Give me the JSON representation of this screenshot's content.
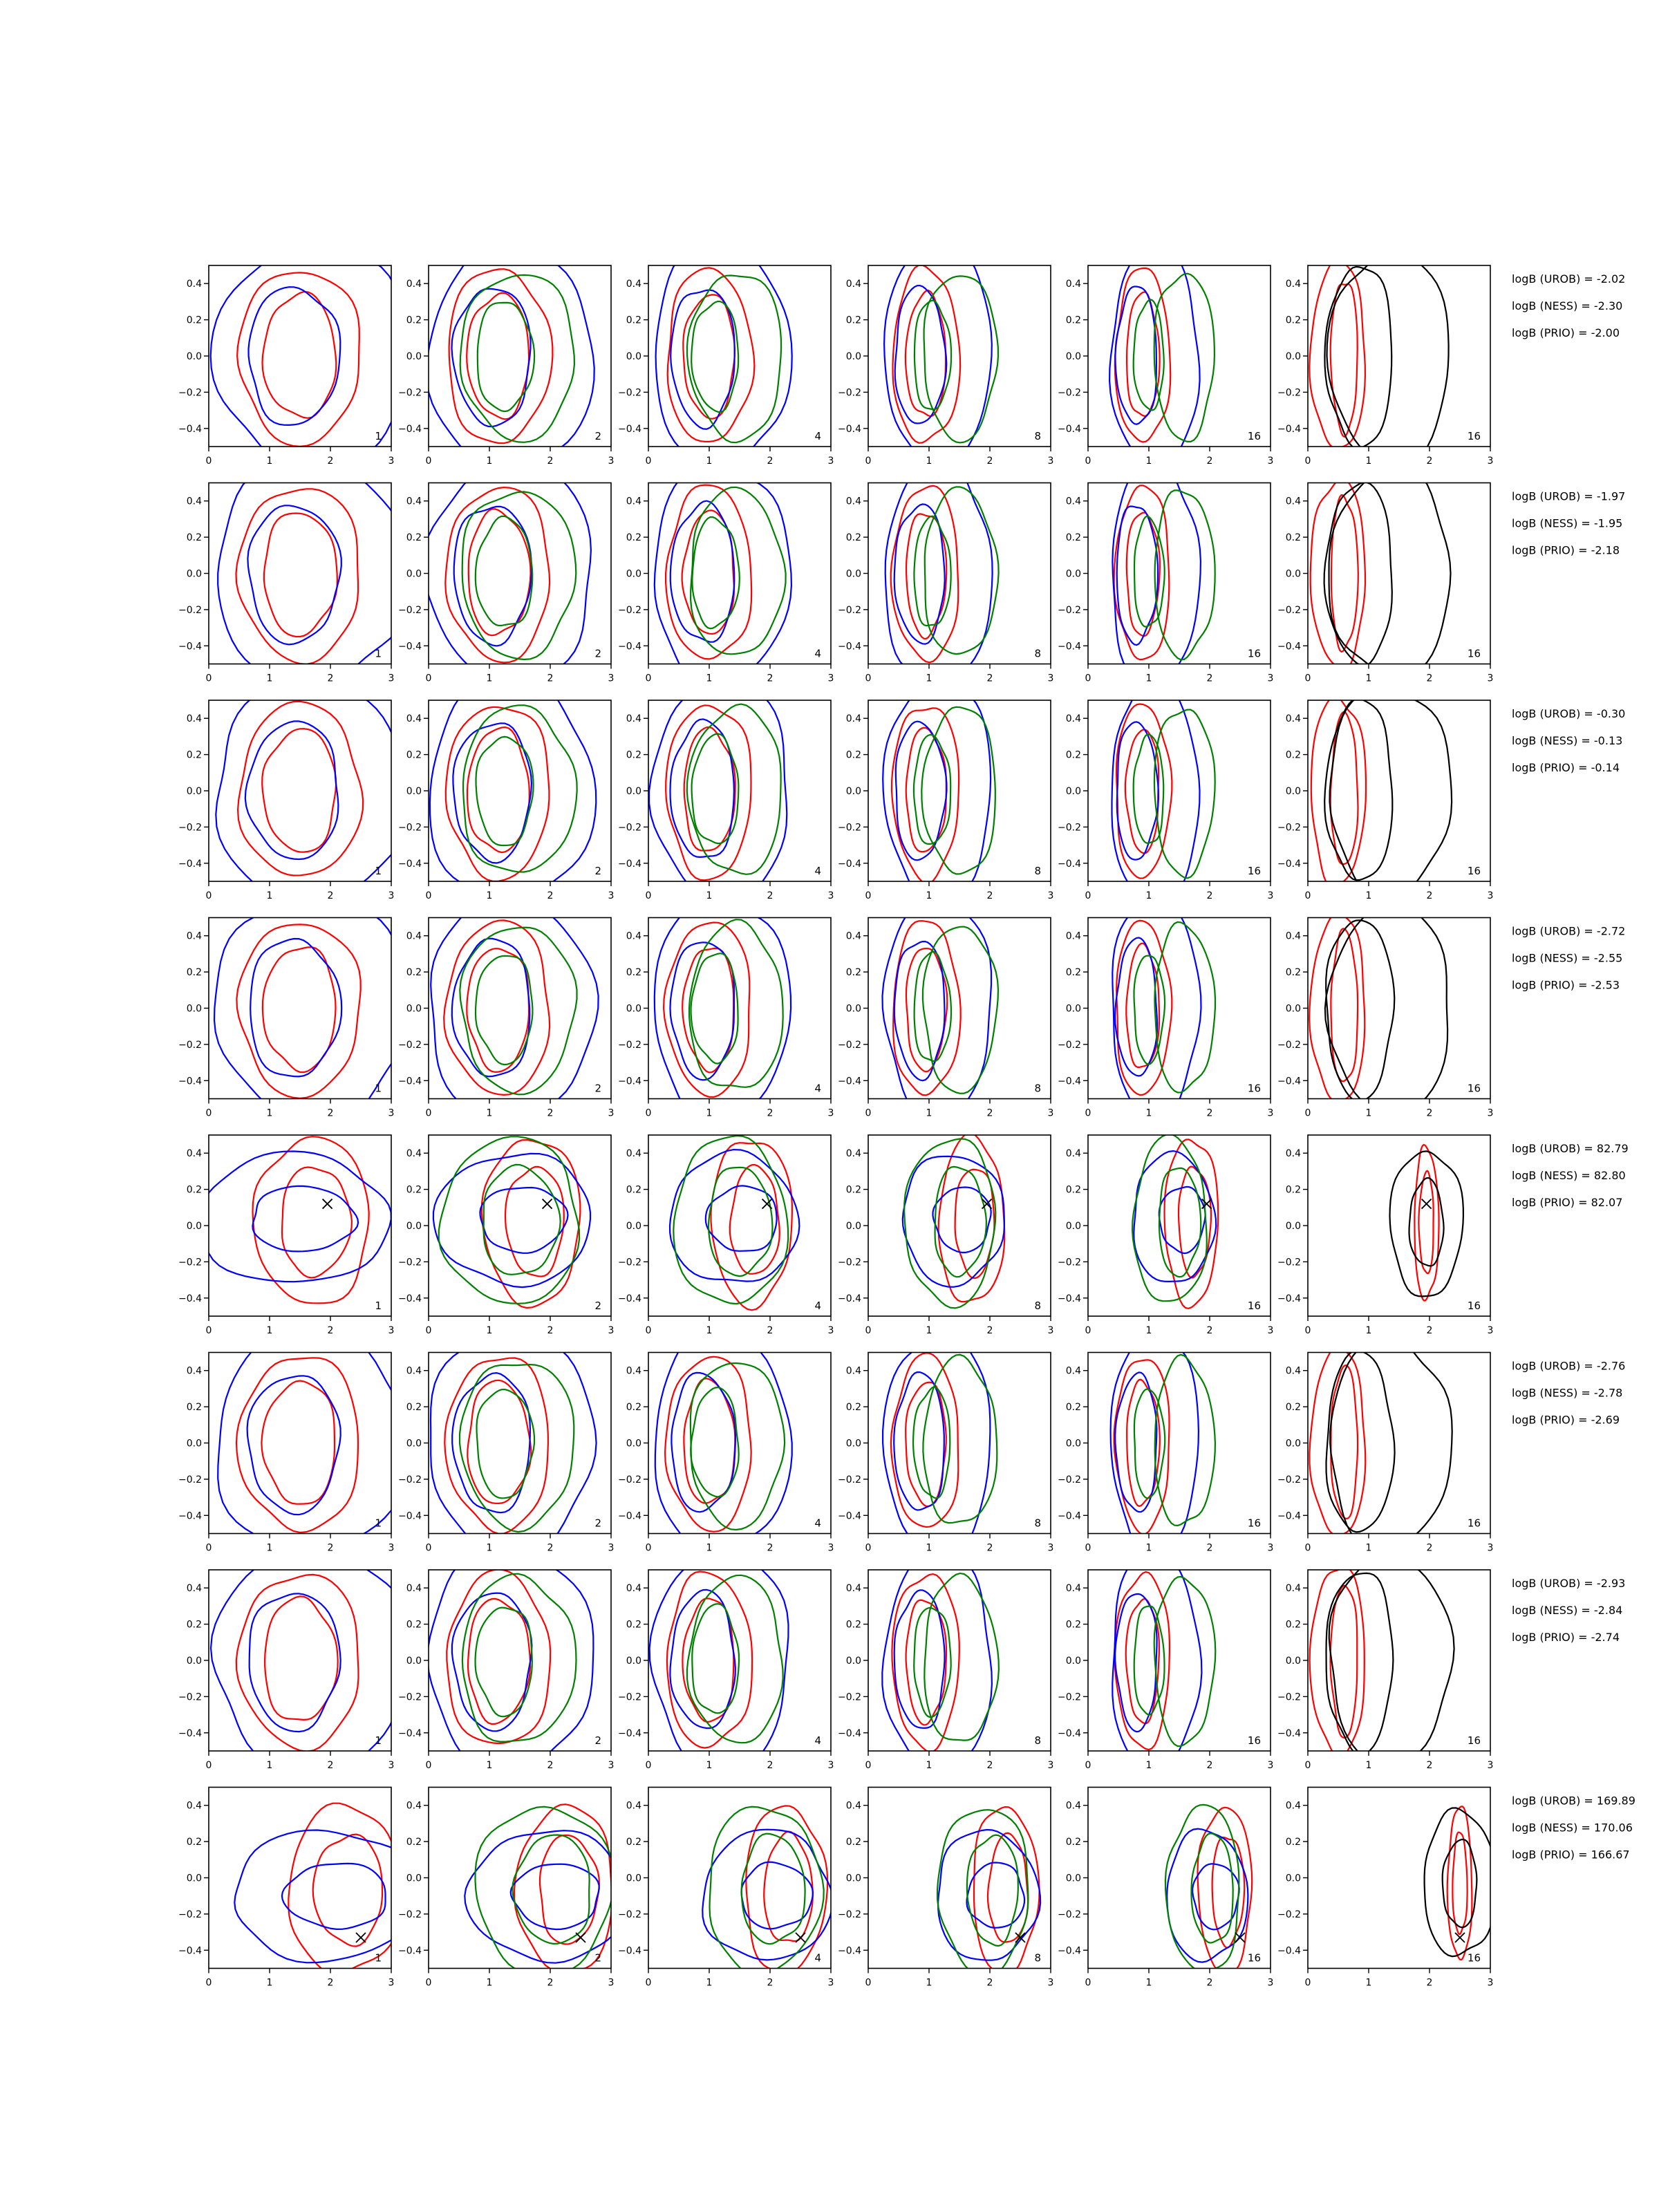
{
  "chart_data": {
    "type": "contour",
    "xlim": [
      0,
      3
    ],
    "ylim": [
      -0.5,
      0.5
    ],
    "x_ticks": [
      "0",
      "1",
      "2",
      "3"
    ],
    "y_ticks": [
      "0.4",
      "0.2",
      "0.0",
      "−0.2",
      "−0.4"
    ],
    "column_labels": [
      "1",
      "2",
      "4",
      "8",
      "16",
      "16"
    ],
    "colors": {
      "blue": "#0000ff",
      "red": "#ff0000",
      "green": "#008000",
      "black": "#000000"
    },
    "rows": [
      {
        "shape": "null",
        "labels": [
          "logB (UROB) = -2.02",
          "logB (NESS) = -2.30",
          "logB (PRIO) = -2.00"
        ]
      },
      {
        "shape": "null",
        "labels": [
          "logB (UROB) = -1.97",
          "logB (NESS) = -1.95",
          "logB (PRIO) = -2.18"
        ]
      },
      {
        "shape": "null",
        "labels": [
          "logB (UROB) = -0.30",
          "logB (NESS) = -0.13",
          "logB (PRIO) = -0.14"
        ]
      },
      {
        "shape": "null",
        "labels": [
          "logB (UROB) = -2.72",
          "logB (NESS) = -2.55",
          "logB (PRIO) = -2.53"
        ]
      },
      {
        "shape": "signal",
        "marker": [
          1.95,
          0.12
        ],
        "labels": [
          "logB (UROB) = 82.79",
          "logB (NESS) = 82.80",
          "logB (PRIO) = 82.07"
        ]
      },
      {
        "shape": "null",
        "labels": [
          "logB (UROB) = -2.76",
          "logB (NESS) = -2.78",
          "logB (PRIO) = -2.69"
        ]
      },
      {
        "shape": "null",
        "labels": [
          "logB (UROB) = -2.93",
          "logB (NESS) = -2.84",
          "logB (PRIO) = -2.74"
        ]
      },
      {
        "shape": "signal",
        "marker": [
          2.5,
          -0.33
        ],
        "labels": [
          "logB (UROB) = 169.89",
          "logB (NESS) = 170.06",
          "logB (PRIO) = 166.67"
        ]
      }
    ]
  }
}
